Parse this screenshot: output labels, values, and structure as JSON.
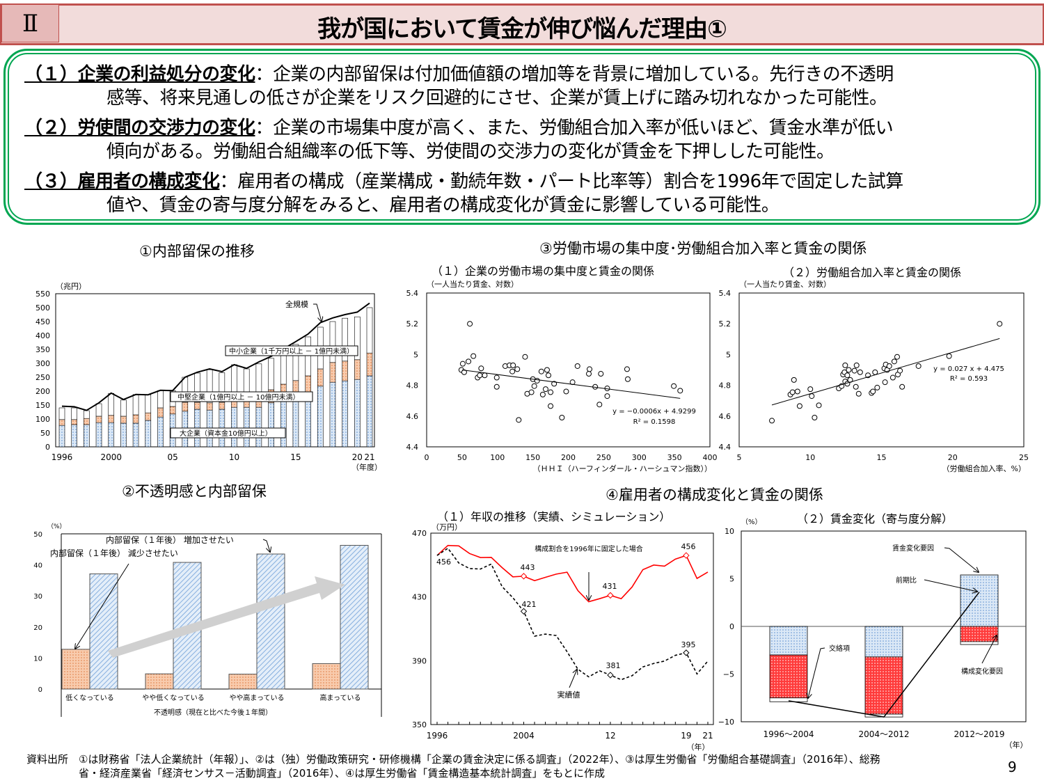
{
  "header": {
    "section": "Ⅱ",
    "title": "我が国において賃金が伸び悩んだ理由①"
  },
  "summary": [
    {
      "head": "（１）企業の利益処分の変化",
      "sep": "：",
      "l1": "企業の内部留保は付加価値額の増加等を背景に増加している。先行きの不透明",
      "l2": "感等、将来見通しの低さが企業をリスク回避的にさせ、企業が賃上げに踏み切れなかった可能性。"
    },
    {
      "head": "（２）労使間の交渉力の変化",
      "sep": "：",
      "l1": "企業の市場集中度が高く、また、労働組合加入率が低いほど、賃金水準が低い",
      "l2": "傾向がある。労働組合組織率の低下等、労使間の交渉力の変化が賃金を下押しした可能性。"
    },
    {
      "head": "（３）雇用者の構成変化",
      "sep": "：",
      "l1": "雇用者の構成（産業構成・勤続年数・パート比率等）割合を1996年で固定した試算",
      "l2": "値や、賃金の寄与度分解をみると、雇用者の構成変化が賃金に影響している可能性。"
    }
  ],
  "chart_data": [
    {
      "id": "c1",
      "type": "bar",
      "title": "①内部留保の推移",
      "ylabel": "（兆円）",
      "xlabel": "（年度）",
      "ylim": [
        0,
        550
      ],
      "yticks": [
        "0",
        "50",
        "100",
        "150",
        "200",
        "250",
        "300",
        "350",
        "400",
        "450",
        "500",
        "550"
      ],
      "xticklabels": [
        {
          "year": 1996,
          "label": "1996"
        },
        {
          "year": 2000,
          "label": "2000"
        },
        {
          "year": 2005,
          "label": "05"
        },
        {
          "year": 2010,
          "label": "10"
        },
        {
          "year": 2015,
          "label": "15"
        },
        {
          "year": 2020,
          "label": "20"
        },
        {
          "year": 2021,
          "label": "21"
        }
      ],
      "years": [
        1996,
        1997,
        1998,
        1999,
        2000,
        2001,
        2002,
        2003,
        2004,
        2005,
        2006,
        2007,
        2008,
        2009,
        2010,
        2011,
        2012,
        2013,
        2014,
        2015,
        2016,
        2017,
        2018,
        2019,
        2020,
        2021
      ],
      "series": [
        {
          "name": "大企業（資本金10億円以上）",
          "cumulative": [
            77,
            80,
            80,
            87,
            87,
            85,
            85,
            95,
            107,
            118,
            128,
            135,
            132,
            135,
            142,
            142,
            142,
            158,
            165,
            170,
            180,
            218,
            232,
            237,
            242,
            255
          ],
          "color": "#9dc3e6"
        },
        {
          "name": "中堅企業（1億円以上 － 10億円未満）",
          "cumulative": [
            98,
            98,
            102,
            110,
            113,
            110,
            115,
            122,
            140,
            145,
            160,
            160,
            158,
            160,
            165,
            165,
            165,
            205,
            225,
            238,
            255,
            280,
            303,
            308,
            313,
            337
          ],
          "color": "#f4b183"
        },
        {
          "name": "中小企業（1千万円以上 － 1億円未満）",
          "cumulative": [
            140,
            140,
            130,
            155,
            192,
            168,
            188,
            187,
            202,
            202,
            250,
            265,
            277,
            266,
            295,
            280,
            298,
            318,
            335,
            368,
            395,
            430,
            450,
            462,
            467,
            500
          ],
          "color": "#ffffff"
        },
        {
          "name": "全規模",
          "values": [
            146,
            144,
            131,
            158,
            193,
            170,
            188,
            187,
            203,
            202,
            250,
            268,
            280,
            270,
            295,
            282,
            305,
            325,
            352,
            378,
            405,
            446,
            463,
            475,
            484,
            516
          ]
        }
      ]
    },
    {
      "id": "c2",
      "type": "bar",
      "title": "②不透明感と内部留保",
      "ylabel": "（%）",
      "xlabel": "不透明感（現在と比べた今後１年間）",
      "ylim": [
        0,
        50
      ],
      "yticks": [
        "0",
        "10",
        "20",
        "30",
        "40",
        "50"
      ],
      "categories": [
        "低くなっている",
        "やや低くなっている",
        "やや高まっている",
        "高まっている"
      ],
      "series": [
        {
          "name": "内部留保（１年後） 減少させたい",
          "values": [
            12.8,
            4.9,
            4.8,
            8.2
          ],
          "color": "#f4b183"
        },
        {
          "name": "内部留保（１年後） 増加させたい",
          "values": [
            37.1,
            40.8,
            43.5,
            46.3
          ],
          "color": "#bdd7ee"
        }
      ]
    },
    {
      "id": "c3a",
      "type": "scatter",
      "group_title": "③労働市場の集中度･労働組合加入率と賃金の関係",
      "title": "（１）企業の労働市場の集中度と賃金の関係",
      "ylabel": "（一人当たり賃金、対数）",
      "xlabel": "（ＨＨＩ（ハーフィンダール・ハーシュマン指数））",
      "xlim": [
        0,
        400
      ],
      "ylim": [
        4.4,
        5.4
      ],
      "xticks": [
        "0",
        "50",
        "100",
        "150",
        "200",
        "250",
        "300",
        "350",
        "400"
      ],
      "yticks": [
        "4.4",
        "4.6",
        "4.8",
        "5",
        "5.2",
        "5.4"
      ],
      "trend": {
        "slope": -0.0006,
        "intercept": 4.9299,
        "x": [
          50,
          358
        ],
        "eq": "y = −0.0006x + 4.9299",
        "r2": "R² = 0.1598"
      },
      "points": [
        [
          49,
          4.9
        ],
        [
          51,
          4.94
        ],
        [
          53,
          4.885
        ],
        [
          59,
          4.955
        ],
        [
          61,
          5.2
        ],
        [
          66,
          4.99
        ],
        [
          72,
          4.85
        ],
        [
          75,
          4.865
        ],
        [
          77,
          4.91
        ],
        [
          82,
          4.865
        ],
        [
          99,
          4.85
        ],
        [
          99,
          4.79
        ],
        [
          111,
          4.925
        ],
        [
          117,
          4.93
        ],
        [
          122,
          4.93
        ],
        [
          121,
          4.89
        ],
        [
          128,
          4.905
        ],
        [
          130,
          4.575
        ],
        [
          139,
          4.985
        ],
        [
          142,
          4.745
        ],
        [
          148,
          4.755
        ],
        [
          150,
          4.84
        ],
        [
          152,
          4.795
        ],
        [
          156,
          4.83
        ],
        [
          162,
          4.89
        ],
        [
          164,
          4.74
        ],
        [
          168,
          4.775
        ],
        [
          170,
          4.9
        ],
        [
          172,
          4.865
        ],
        [
          175,
          4.755
        ],
        [
          175,
          4.665
        ],
        [
          180,
          4.81
        ],
        [
          191,
          4.59
        ],
        [
          197,
          4.76
        ],
        [
          206,
          4.82
        ],
        [
          213,
          4.925
        ],
        [
          229,
          4.875
        ],
        [
          230,
          4.905
        ],
        [
          238,
          4.79
        ],
        [
          244,
          4.675
        ],
        [
          246,
          4.875
        ],
        [
          255,
          4.78
        ],
        [
          255,
          4.73
        ],
        [
          283,
          4.905
        ],
        [
          284,
          4.84
        ],
        [
          349,
          4.795
        ],
        [
          358,
          4.765
        ]
      ]
    },
    {
      "id": "c3b",
      "type": "scatter",
      "title": "（２）労働組合加入率と賃金の関係",
      "ylabel": "（一人当たり賃金、対数）",
      "xlabel": "（労働組合加入率、%）",
      "xlim": [
        5,
        25
      ],
      "ylim": [
        4.4,
        5.4
      ],
      "xticks": [
        "5",
        "10",
        "15",
        "20",
        "25"
      ],
      "yticks": [
        "4.4",
        "4.6",
        "4.8",
        "5",
        "5.2",
        "5.4"
      ],
      "trend": {
        "slope": 0.027,
        "intercept": 4.475,
        "x": [
          7.3,
          23.3
        ],
        "eq": "y = 0.027 x + 4.475",
        "r2": "R² = 0.593"
      },
      "points": [
        [
          7.3,
          4.57
        ],
        [
          8.6,
          4.74
        ],
        [
          8.75,
          4.755
        ],
        [
          8.85,
          4.835
        ],
        [
          9.1,
          4.76
        ],
        [
          9.25,
          4.665
        ],
        [
          10,
          4.775
        ],
        [
          10.1,
          4.73
        ],
        [
          10.3,
          4.59
        ],
        [
          10.6,
          4.67
        ],
        [
          12,
          4.78
        ],
        [
          12.2,
          4.795
        ],
        [
          12.3,
          4.87
        ],
        [
          12.4,
          4.885
        ],
        [
          12.45,
          4.93
        ],
        [
          12.45,
          4.825
        ],
        [
          12.6,
          4.81
        ],
        [
          12.6,
          4.865
        ],
        [
          12.7,
          4.9
        ],
        [
          12.8,
          4.835
        ],
        [
          13.1,
          4.895
        ],
        [
          13.2,
          4.79
        ],
        [
          13.25,
          4.93
        ],
        [
          13.4,
          4.745
        ],
        [
          13.5,
          4.885
        ],
        [
          14.05,
          4.865
        ],
        [
          14.3,
          4.75
        ],
        [
          14.4,
          4.76
        ],
        [
          14.55,
          4.885
        ],
        [
          14.7,
          4.785
        ],
        [
          15.2,
          4.91
        ],
        [
          15.25,
          4.82
        ],
        [
          15.3,
          4.935
        ],
        [
          15.4,
          4.9
        ],
        [
          15.55,
          4.925
        ],
        [
          15.8,
          4.85
        ],
        [
          15.9,
          4.955
        ],
        [
          16.1,
          4.985
        ],
        [
          16.15,
          4.87
        ],
        [
          16.3,
          4.895
        ],
        [
          16.45,
          4.79
        ],
        [
          17.6,
          4.925
        ],
        [
          19.75,
          4.99
        ],
        [
          23.3,
          5.2
        ]
      ]
    },
    {
      "id": "c4a",
      "type": "line",
      "group_title": "④雇用者の構成変化と賃金の関係",
      "title": "（１）年収の推移（実績、シミュレーション）",
      "ylabel": "（万円）",
      "xlabel": "（年）",
      "ylim": [
        350,
        470
      ],
      "yticks": [
        "350",
        "390",
        "430",
        "470"
      ],
      "xticklabels": [
        {
          "year": 1996,
          "label": "1996"
        },
        {
          "year": 2004,
          "label": "2004"
        },
        {
          "year": 2012,
          "label": "12"
        },
        {
          "year": 2019,
          "label": "19"
        },
        {
          "year": 2021,
          "label": "21"
        }
      ],
      "years": [
        1996,
        1997,
        1998,
        1999,
        2000,
        2001,
        2002,
        2003,
        2004,
        2005,
        2006,
        2007,
        2008,
        2009,
        2010,
        2011,
        2012,
        2013,
        2014,
        2015,
        2016,
        2017,
        2018,
        2019,
        2020,
        2021
      ],
      "series": [
        {
          "name": "構成割合を1996年に固定した場合",
          "color": "#ff0000",
          "values": [
            456,
            462.3,
            462,
            457.2,
            454.7,
            454.8,
            448.4,
            442.6,
            443,
            440.2,
            442.3,
            444.3,
            445.5,
            434,
            427,
            428.9,
            431,
            428.9,
            436.2,
            447.1,
            450,
            449.3,
            453.7,
            456,
            441.6,
            445.6
          ]
        },
        {
          "name": "実績値",
          "color": "#000000",
          "values": [
            456,
            460.5,
            451.3,
            447.8,
            447.5,
            450.6,
            436.5,
            429.5,
            421,
            405.4,
            406.7,
            405.8,
            395.7,
            384.7,
            379.9,
            383.7,
            381,
            378.1,
            380.6,
            386.1,
            388.3,
            389.8,
            393.4,
            395,
            381.7,
            389.8
          ]
        }
      ],
      "labels": {
        "start": "456",
        "red2004": "443",
        "red2012": "431",
        "red2019": "456",
        "blk2004": "421",
        "blk2012": "381",
        "blk2019": "395"
      }
    },
    {
      "id": "c4b",
      "type": "bar",
      "title": "（２）賃金変化（寄与度分解）",
      "ylabel": "（%）",
      "xlabel": "（年）",
      "ylim": [
        -10,
        10
      ],
      "yticks": [
        "−10",
        "−5",
        "0",
        "5",
        "10"
      ],
      "categories": [
        "1996～2004",
        "2004～2012",
        "2012～2019"
      ],
      "series": [
        {
          "name": "賃金変化要因",
          "values": [
            -3.0,
            -3.2,
            5.4
          ],
          "color": "#bdd7ee"
        },
        {
          "name": "構成変化要因",
          "values": [
            -4.5,
            -6.0,
            -1.6
          ],
          "color": "#ff3333"
        },
        {
          "name": "交絡項",
          "values": [
            -0.4,
            -0.3,
            -0.3
          ],
          "color": "#ffffff"
        },
        {
          "name": "前期比",
          "values": [
            -7.8,
            -9.5,
            3.6
          ]
        }
      ]
    }
  ],
  "footer": {
    "source": "資料出所　①は財務省「法人企業統計（年報）」、②は（独）労働政策研究・研修機構「企業の賃金決定に係る調査」（2022年）、③は厚生労働省「労働組合基礎調査」（2016年）、総務",
    "source2": "省・経済産業省「経済センサス－活動調査」（2016年）、④は厚生労働省「賃金構造基本統計調査」をもとに作成",
    "page": "9"
  }
}
